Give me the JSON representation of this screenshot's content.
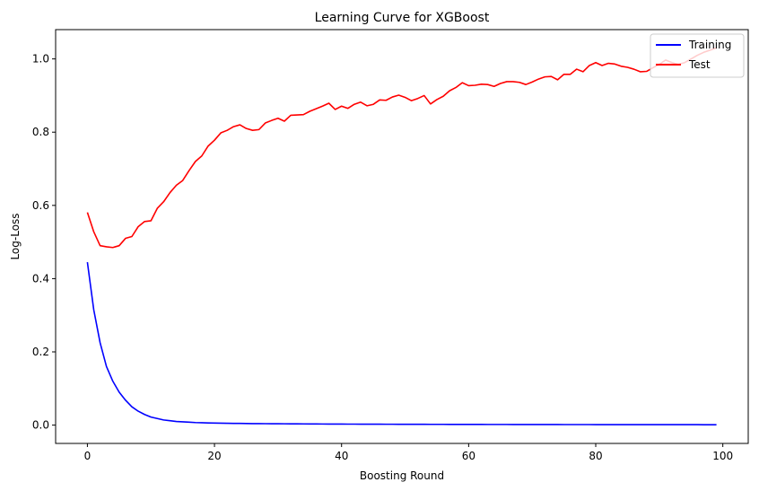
{
  "chart_data": {
    "type": "line",
    "title": "Learning Curve for XGBoost",
    "xlabel": "Boosting Round",
    "ylabel": "Log-Loss",
    "xlim": [
      -5,
      104
    ],
    "ylim": [
      -0.05,
      1.08
    ],
    "xticks": [
      0,
      20,
      40,
      60,
      80,
      100
    ],
    "yticks": [
      0.0,
      0.2,
      0.4,
      0.6,
      0.8,
      1.0
    ],
    "xtick_labels": [
      "0",
      "20",
      "40",
      "60",
      "80",
      "100"
    ],
    "ytick_labels": [
      "0.0",
      "0.2",
      "0.4",
      "0.6",
      "0.8",
      "1.0"
    ],
    "legend_position": "top-right",
    "series": [
      {
        "name": "Training",
        "color": "#0000ff",
        "values": [
          0.445,
          0.315,
          0.225,
          0.16,
          0.12,
          0.09,
          0.068,
          0.05,
          0.038,
          0.029,
          0.022,
          0.018,
          0.014,
          0.012,
          0.01,
          0.009,
          0.008,
          0.007,
          0.0065,
          0.006,
          0.0055,
          0.0052,
          0.005,
          0.0048,
          0.0046,
          0.0044,
          0.0042,
          0.004,
          0.0039,
          0.0038,
          0.0037,
          0.0036,
          0.0035,
          0.0034,
          0.0033,
          0.0032,
          0.0031,
          0.003,
          0.0029,
          0.0028,
          0.0028,
          0.0027,
          0.0027,
          0.0026,
          0.0026,
          0.0025,
          0.0025,
          0.0024,
          0.0024,
          0.0023,
          0.0023,
          0.0022,
          0.0022,
          0.0022,
          0.0021,
          0.0021,
          0.0021,
          0.002,
          0.002,
          0.002,
          0.0019,
          0.0019,
          0.0019,
          0.0018,
          0.0018,
          0.0018,
          0.0018,
          0.0017,
          0.0017,
          0.0017,
          0.0017,
          0.0016,
          0.0016,
          0.0016,
          0.0016,
          0.0015,
          0.0015,
          0.0015,
          0.0015,
          0.0015,
          0.0014,
          0.0014,
          0.0014,
          0.0014,
          0.0014,
          0.0013,
          0.0013,
          0.0013,
          0.0013,
          0.0013,
          0.0013,
          0.0012,
          0.0012,
          0.0012,
          0.0012,
          0.0012,
          0.0012,
          0.0011,
          0.0011,
          0.0011
        ]
      },
      {
        "name": "Test",
        "color": "#ff0000",
        "values": [
          0.581,
          0.528,
          0.49,
          0.487,
          0.485,
          0.49,
          0.51,
          0.515,
          0.542,
          0.556,
          0.558,
          0.592,
          0.61,
          0.635,
          0.655,
          0.668,
          0.695,
          0.72,
          0.735,
          0.762,
          0.778,
          0.798,
          0.805,
          0.815,
          0.82,
          0.81,
          0.805,
          0.807,
          0.825,
          0.832,
          0.838,
          0.83,
          0.846,
          0.847,
          0.848,
          0.857,
          0.864,
          0.871,
          0.879,
          0.862,
          0.871,
          0.865,
          0.876,
          0.882,
          0.872,
          0.876,
          0.888,
          0.887,
          0.896,
          0.901,
          0.895,
          0.886,
          0.892,
          0.9,
          0.877,
          0.889,
          0.898,
          0.913,
          0.922,
          0.935,
          0.927,
          0.928,
          0.931,
          0.93,
          0.925,
          0.933,
          0.938,
          0.938,
          0.936,
          0.93,
          0.937,
          0.945,
          0.951,
          0.952,
          0.943,
          0.958,
          0.958,
          0.972,
          0.965,
          0.982,
          0.99,
          0.982,
          0.988,
          0.986,
          0.98,
          0.977,
          0.972,
          0.965,
          0.966,
          0.976,
          0.985,
          0.997,
          0.99,
          0.985,
          0.99,
          1.0,
          1.01,
          1.018,
          1.024,
          1.03
        ]
      }
    ]
  }
}
